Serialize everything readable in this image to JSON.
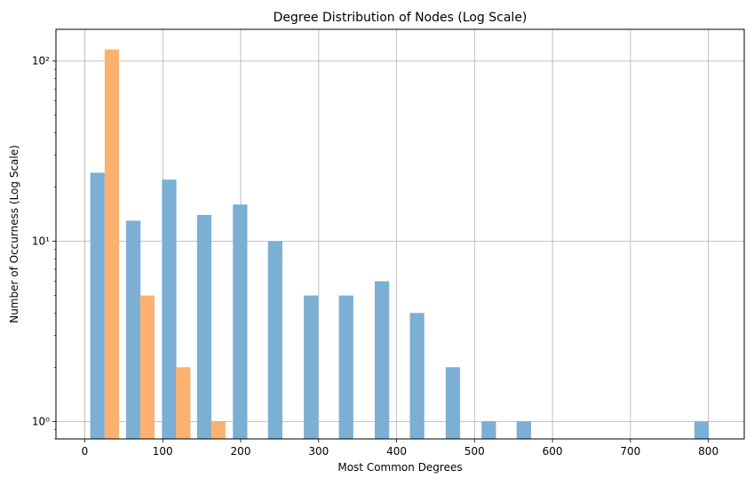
{
  "chart_data": {
    "type": "bar",
    "title": "Degree Distribution of Nodes (Log Scale)",
    "xlabel": "Most Common Degrees",
    "ylabel": "Number of Occurness (Log Scale)",
    "xlim": [
      -37,
      846
    ],
    "ylim": [
      0.8,
      150
    ],
    "yscale": "log",
    "grid": true,
    "x_ticks": [
      0,
      100,
      200,
      300,
      400,
      500,
      600,
      700,
      800
    ],
    "y_ticks": [
      {
        "value": 1,
        "label": "10⁰"
      },
      {
        "value": 10,
        "label": "10¹"
      },
      {
        "value": 100,
        "label": "10²"
      }
    ],
    "bar_width": 18.5,
    "series": [
      {
        "color": "#7bafd4",
        "bins": [
          {
            "x": 7,
            "value": 24
          },
          {
            "x": 53,
            "value": 13
          },
          {
            "x": 99,
            "value": 22
          },
          {
            "x": 144,
            "value": 14
          },
          {
            "x": 190,
            "value": 16
          },
          {
            "x": 235,
            "value": 10
          },
          {
            "x": 281,
            "value": 5
          },
          {
            "x": 326,
            "value": 5
          },
          {
            "x": 372,
            "value": 6
          },
          {
            "x": 417,
            "value": 4
          },
          {
            "x": 463,
            "value": 2
          },
          {
            "x": 509,
            "value": 1
          },
          {
            "x": 554,
            "value": 1
          },
          {
            "x": 782,
            "value": 1
          }
        ]
      },
      {
        "color": "#fdb170",
        "bins": [
          {
            "x": 25.5,
            "value": 116
          },
          {
            "x": 71,
            "value": 5
          },
          {
            "x": 117,
            "value": 2
          },
          {
            "x": 162,
            "value": 1
          }
        ]
      }
    ]
  }
}
